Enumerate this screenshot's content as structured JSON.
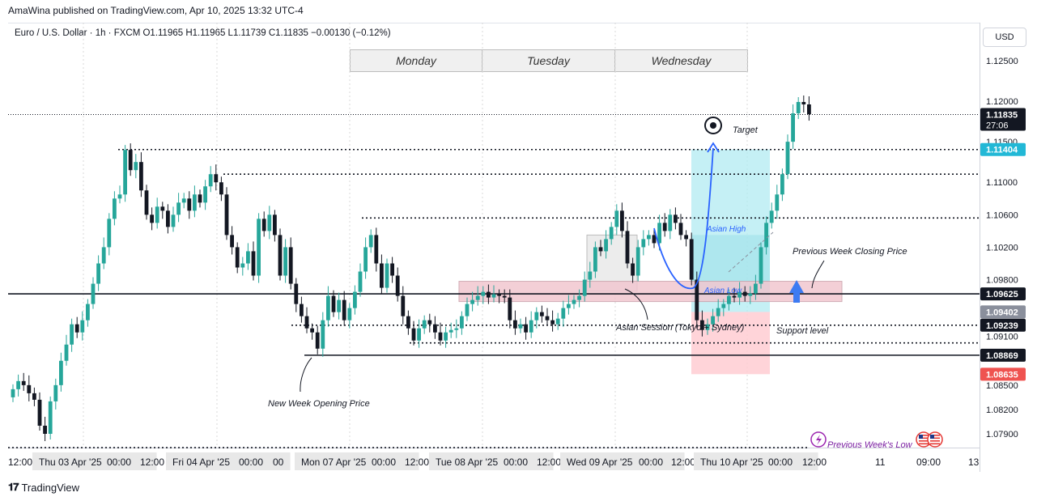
{
  "header": {
    "publish_line": "AmaWina published on TradingView.com, Apr 10, 2025 13:32 UTC-4",
    "symbol_line": "Euro / U.S. Dollar · 1h · FXCM  O1.11965  H1.11965  L1.11739  C1.11835  −0.00130 (−0.12%)",
    "currency": "USD"
  },
  "day_labels": [
    "Monday",
    "Tuesday",
    "Wednesday"
  ],
  "annotations": {
    "target": "Target",
    "asian_high": "Asian High",
    "asian_low": "Asian Low",
    "prev_week_close": "Previous Week Closing Price",
    "asian_session": "Asian Session (Tokyo + Sydney)",
    "support_level": "Support level",
    "new_week_open": "New Week Opening Price",
    "prev_week_low": "Previous Week's Low"
  },
  "price_axis": {
    "ticks": [
      "1.12500",
      "1.12000",
      "1.11500",
      "1.11000",
      "1.10600",
      "1.10200",
      "1.09800",
      "1.09100",
      "1.08500",
      "1.08200",
      "1.07900"
    ],
    "badges": [
      {
        "text": "1.11835",
        "sub": "27:06",
        "bg": "#131722",
        "fg": "#ffffff"
      },
      {
        "text": "1.11404",
        "bg": "#22b8d6",
        "fg": "#ffffff"
      },
      {
        "text": "1.09625",
        "bg": "#131722",
        "fg": "#ffffff"
      },
      {
        "text": "1.09402",
        "bg": "#8a8f9c",
        "fg": "#ffffff"
      },
      {
        "text": "1.09239",
        "bg": "#131722",
        "fg": "#ffffff"
      },
      {
        "text": "1.08869",
        "bg": "#131722",
        "fg": "#ffffff"
      },
      {
        "text": "1.08635",
        "bg": "#ef5350",
        "fg": "#ffffff"
      }
    ]
  },
  "time_axis": {
    "labels": [
      "12:00",
      "Thu 03 Apr '25",
      "00:00",
      "12:00",
      "Fri 04 Apr '25",
      "00:00",
      "00",
      "Mon 07 Apr '25",
      "00:00",
      "12:00",
      "Tue 08 Apr '25",
      "00:00",
      "12:00",
      "Wed 09 Apr '25",
      "00:00",
      "12:00",
      "Thu 10 Apr '25",
      "00:00",
      "12:00",
      "11",
      "09:00",
      "13"
    ]
  },
  "footer": {
    "brand": "TradingView"
  },
  "colors": {
    "up": "#26a69a",
    "down": "#131722",
    "target_zone": "#b2ebf2",
    "stop_zone": "#ffcdd2",
    "session_box": "#ececec",
    "resistance_band": "#f1c7d0",
    "arrow_blue": "#2962ff"
  },
  "chart_data": {
    "type": "candlestick",
    "symbol": "EUR/USD",
    "timeframe": "1h",
    "ohlc_last": {
      "open": 1.11965,
      "high": 1.11965,
      "low": 1.11739,
      "close": 1.11835,
      "change": -0.0013,
      "change_pct": -0.12
    },
    "y_range": [
      1.076,
      1.1285
    ],
    "levels": [
      {
        "price": 1.11404,
        "style": "dotted"
      },
      {
        "price": 1.111,
        "style": "dotted"
      },
      {
        "price": 1.1056,
        "style": "dotted"
      },
      {
        "price": 1.09625,
        "style": "solid"
      },
      {
        "price": 1.09239,
        "style": "dotted"
      },
      {
        "price": 1.0902,
        "style": "dotted"
      },
      {
        "price": 1.08869,
        "style": "solid"
      },
      {
        "price": 1.0773,
        "style": "dotted"
      }
    ],
    "position": {
      "entry": 1.09402,
      "target": 1.11404,
      "stop": 1.08635
    },
    "closes": [
      1.0845,
      1.0855,
      1.085,
      1.084,
      1.0832,
      1.08,
      1.079,
      1.083,
      1.085,
      1.088,
      1.09,
      1.0925,
      1.0915,
      1.093,
      1.095,
      1.0975,
      1.1,
      1.102,
      1.1055,
      1.108,
      1.1085,
      1.114,
      1.1115,
      1.1125,
      1.109,
      1.106,
      1.105,
      1.107,
      1.1065,
      1.1045,
      1.106,
      1.1075,
      1.108,
      1.1065,
      1.1085,
      1.1075,
      1.1095,
      1.111,
      1.11,
      1.1085,
      1.1035,
      1.102,
      1.0995,
      1.1,
      1.1015,
      1.0985,
      1.1055,
      1.104,
      1.106,
      1.1035,
      1.0985,
      1.102,
      1.0975,
      1.095,
      1.0935,
      1.092,
      1.0915,
      1.0895,
      1.093,
      1.096,
      1.094,
      1.0955,
      1.093,
      1.0945,
      1.0965,
      1.099,
      1.102,
      1.1035,
      1.1,
      1.097,
      1.1,
      1.0985,
      1.096,
      1.0935,
      1.092,
      1.0905,
      1.092,
      1.093,
      1.0925,
      1.0915,
      1.0905,
      1.0915,
      1.0918,
      1.092,
      1.0935,
      1.095,
      1.0955,
      1.096,
      1.0965,
      1.0958,
      1.0962,
      1.096,
      1.0958,
      1.093,
      1.092,
      1.0925,
      1.0915,
      1.093,
      1.094,
      1.0935,
      1.093,
      1.0925,
      1.0932,
      1.0945,
      1.095,
      1.0955,
      1.096,
      1.098,
      1.099,
      1.102,
      1.1015,
      1.103,
      1.1045,
      1.1065,
      1.104,
      1.1,
      1.0985,
      1.102,
      1.103,
      1.1035,
      1.1025,
      1.105,
      1.104,
      1.106,
      1.105,
      1.1035,
      1.103,
      1.098,
      1.093,
      1.0918,
      1.0925,
      1.0935,
      1.0945,
      1.095,
      1.096,
      1.0958,
      1.0965,
      1.096,
      1.0963,
      1.0975,
      1.102,
      1.105,
      1.1065,
      1.1085,
      1.111,
      1.115,
      1.1185,
      1.1199,
      1.1196,
      1.1184
    ]
  }
}
